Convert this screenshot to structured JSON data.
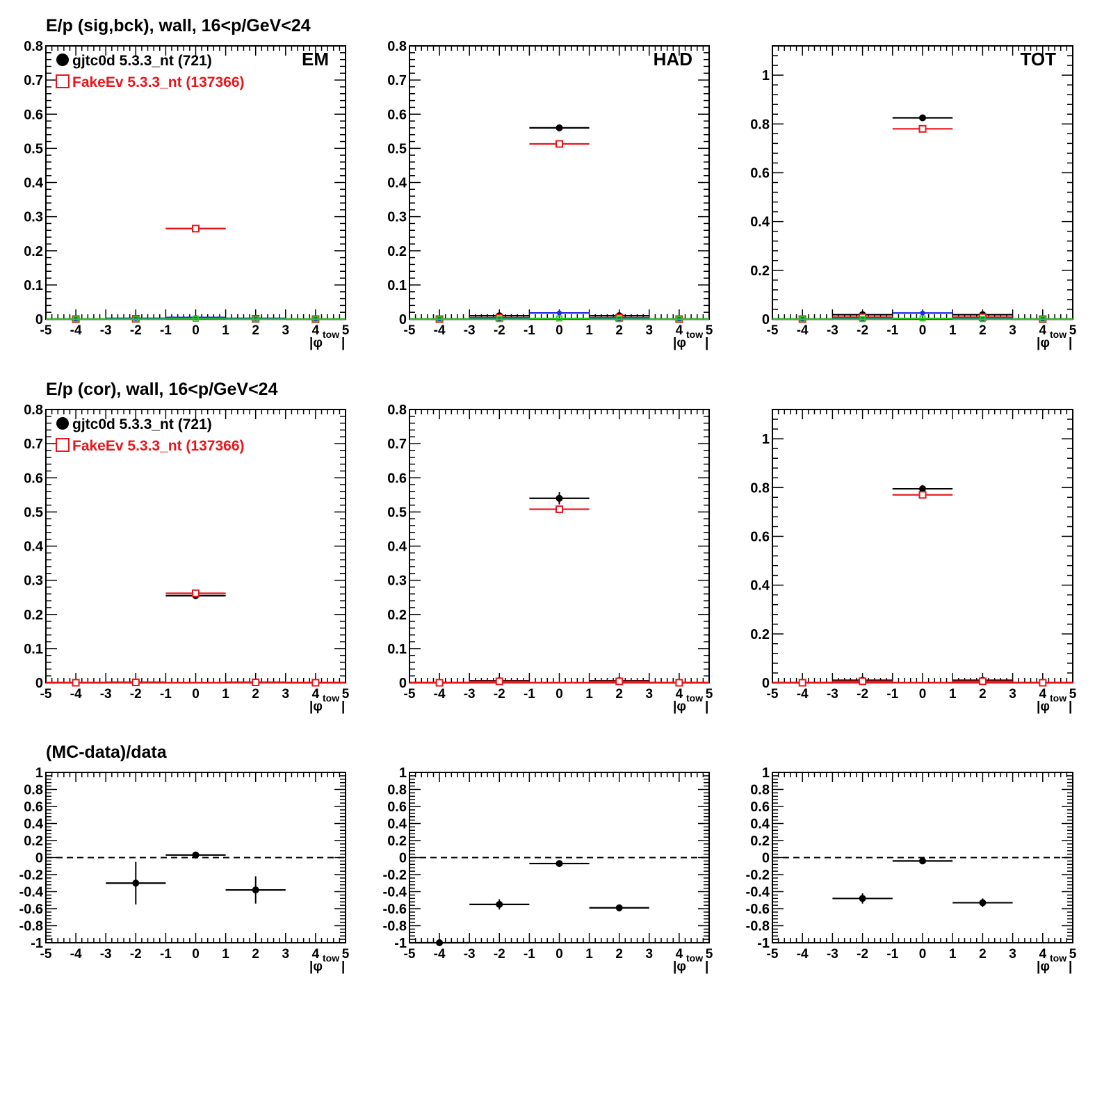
{
  "colors": {
    "data": "#000000",
    "mc": "#e8161b",
    "bck_data": "#1f2be8",
    "bck_mc": "#22cc22",
    "axis": "#000000",
    "reference": "#000000"
  },
  "rows": [
    {
      "title": "E/p (sig,bck), wall, 16<p/GeV<24"
    },
    {
      "title": "E/p (cor), wall, 16<p/GeV<24"
    },
    {
      "title": "(MC-data)/data"
    }
  ],
  "legend": {
    "items": [
      {
        "label": "gjtc0d 5.3.3_nt (721)",
        "marker": "filled-circle",
        "color": "#000000"
      },
      {
        "label": "FakeEv 5.3.3_nt (137366)",
        "marker": "open-square",
        "color": "#e8161b"
      }
    ]
  },
  "xaxis": {
    "label_main": "|φ",
    "label_sub": "tow",
    "label_close": "|",
    "tick_labels": [
      "-5",
      "-4",
      "-3",
      "-2",
      "-1",
      "0",
      "1",
      "2",
      "3",
      "4",
      "5"
    ]
  },
  "chart_data": [
    {
      "type": "scatter",
      "row": 0,
      "col": 0,
      "panel_label": "EM",
      "xlim": [
        -5,
        5
      ],
      "ylim": [
        0,
        0.8
      ],
      "yticks": [
        0,
        0.1,
        0.2,
        0.3,
        0.4,
        0.5,
        0.6,
        0.7,
        0.8
      ],
      "ytick_labels": [
        "0",
        "0.1",
        "0.2",
        "0.3",
        "0.4",
        "0.5",
        "0.6",
        "0.7",
        "0.8"
      ],
      "legend": true,
      "series": [
        {
          "name": "gjtc0d 5.3.3_nt (721)",
          "role": "data",
          "marker": "filled-circle",
          "x": [
            -4,
            -2,
            0,
            2,
            4
          ],
          "y": [
            0,
            0.002,
            0.265,
            0.002,
            0
          ],
          "yerr": [
            0,
            0.002,
            0.006,
            0.002,
            0
          ]
        },
        {
          "name": "FakeEv 5.3.3_nt (137366)",
          "role": "mc",
          "marker": "open-square",
          "x": [
            -4,
            -2,
            0,
            2,
            4
          ],
          "y": [
            0,
            0.001,
            0.265,
            0.001,
            0
          ],
          "yerr": [
            0,
            0,
            0.002,
            0,
            0
          ]
        },
        {
          "role": "bck_data",
          "marker": "small-filled-circle",
          "x": [
            -4,
            -2,
            0,
            2,
            4
          ],
          "y": [
            0,
            0.002,
            0.005,
            0.002,
            0
          ],
          "yerr": [
            0,
            0,
            0,
            0,
            0
          ]
        },
        {
          "role": "bck_mc",
          "marker": "small-open-square",
          "x": [
            -4,
            -2,
            0,
            2,
            4
          ],
          "y": [
            0,
            0,
            0.001,
            0,
            0
          ],
          "yerr": [
            0,
            0,
            0,
            0,
            0
          ]
        }
      ]
    },
    {
      "type": "scatter",
      "row": 0,
      "col": 1,
      "panel_label": "HAD",
      "xlim": [
        -5,
        5
      ],
      "ylim": [
        0,
        0.8
      ],
      "yticks": [
        0,
        0.1,
        0.2,
        0.3,
        0.4,
        0.5,
        0.6,
        0.7,
        0.8
      ],
      "ytick_labels": [
        "0",
        "0.1",
        "0.2",
        "0.3",
        "0.4",
        "0.5",
        "0.6",
        "0.7",
        "0.8"
      ],
      "legend": false,
      "series": [
        {
          "name": "gjtc0d 5.3.3_nt (721)",
          "role": "data",
          "marker": "filled-circle",
          "x": [
            -4,
            -2,
            0,
            2,
            4
          ],
          "y": [
            0,
            0.01,
            0.56,
            0.01,
            0
          ],
          "yerr": [
            0,
            0.002,
            0.01,
            0.002,
            0
          ]
        },
        {
          "name": "FakeEv 5.3.3_nt (137366)",
          "role": "mc",
          "marker": "open-square",
          "x": [
            -4,
            -2,
            0,
            2,
            4
          ],
          "y": [
            0,
            0.004,
            0.513,
            0.004,
            0
          ],
          "yerr": [
            0,
            0,
            0.002,
            0,
            0
          ]
        },
        {
          "role": "bck_data",
          "marker": "small-filled-circle",
          "x": [
            -4,
            -2,
            0,
            2,
            4
          ],
          "y": [
            0,
            0.002,
            0.018,
            0.002,
            0
          ],
          "yerr": [
            0,
            0,
            0,
            0,
            0
          ]
        },
        {
          "role": "bck_mc",
          "marker": "small-open-square",
          "x": [
            -4,
            -2,
            0,
            2,
            4
          ],
          "y": [
            0,
            0,
            0.002,
            0,
            0
          ],
          "yerr": [
            0,
            0,
            0,
            0,
            0
          ]
        }
      ]
    },
    {
      "type": "scatter",
      "row": 0,
      "col": 2,
      "panel_label": "TOT",
      "xlim": [
        -5,
        5
      ],
      "ylim": [
        0,
        1.12
      ],
      "yticks": [
        0,
        0.2,
        0.4,
        0.6,
        0.8,
        1
      ],
      "ytick_labels": [
        "0",
        "0.2",
        "0.4",
        "0.6",
        "0.8",
        "1"
      ],
      "legend": false,
      "series": [
        {
          "name": "gjtc0d 5.3.3_nt (721)",
          "role": "data",
          "marker": "filled-circle",
          "x": [
            -4,
            -2,
            0,
            2,
            4
          ],
          "y": [
            0,
            0.018,
            0.825,
            0.018,
            0
          ],
          "yerr": [
            0,
            0.003,
            0.01,
            0.003,
            0
          ]
        },
        {
          "name": "FakeEv 5.3.3_nt (137366)",
          "role": "mc",
          "marker": "open-square",
          "x": [
            -4,
            -2,
            0,
            2,
            4
          ],
          "y": [
            0,
            0.008,
            0.78,
            0.008,
            0
          ],
          "yerr": [
            0,
            0,
            0.003,
            0,
            0
          ]
        },
        {
          "role": "bck_data",
          "marker": "small-filled-circle",
          "x": [
            -4,
            -2,
            0,
            2,
            4
          ],
          "y": [
            0,
            0.003,
            0.025,
            0.003,
            0
          ],
          "yerr": [
            0,
            0,
            0,
            0,
            0
          ]
        },
        {
          "role": "bck_mc",
          "marker": "small-open-square",
          "x": [
            -4,
            -2,
            0,
            2,
            4
          ],
          "y": [
            0,
            0,
            0.003,
            0,
            0
          ],
          "yerr": [
            0,
            0,
            0,
            0,
            0
          ]
        }
      ]
    },
    {
      "type": "scatter",
      "row": 1,
      "col": 0,
      "panel_label": "",
      "xlim": [
        -5,
        5
      ],
      "ylim": [
        0,
        0.8
      ],
      "yticks": [
        0,
        0.1,
        0.2,
        0.3,
        0.4,
        0.5,
        0.6,
        0.7,
        0.8
      ],
      "ytick_labels": [
        "0",
        "0.1",
        "0.2",
        "0.3",
        "0.4",
        "0.5",
        "0.6",
        "0.7",
        "0.8"
      ],
      "legend": true,
      "series": [
        {
          "name": "gjtc0d 5.3.3_nt (721)",
          "role": "data",
          "marker": "filled-circle",
          "x": [
            -4,
            -2,
            0,
            2,
            4
          ],
          "y": [
            0,
            0.001,
            0.255,
            0.001,
            0
          ],
          "yerr": [
            0,
            0.001,
            0.008,
            0.001,
            0
          ]
        },
        {
          "name": "FakeEv 5.3.3_nt (137366)",
          "role": "mc",
          "marker": "open-square",
          "x": [
            -4,
            -2,
            0,
            2,
            4
          ],
          "y": [
            0,
            0.001,
            0.262,
            0.001,
            0
          ],
          "yerr": [
            0,
            0,
            0.002,
            0,
            0
          ]
        }
      ]
    },
    {
      "type": "scatter",
      "row": 1,
      "col": 1,
      "panel_label": "",
      "xlim": [
        -5,
        5
      ],
      "ylim": [
        0,
        0.8
      ],
      "yticks": [
        0,
        0.1,
        0.2,
        0.3,
        0.4,
        0.5,
        0.6,
        0.7,
        0.8
      ],
      "ytick_labels": [
        "0",
        "0.1",
        "0.2",
        "0.3",
        "0.4",
        "0.5",
        "0.6",
        "0.7",
        "0.8"
      ],
      "legend": false,
      "series": [
        {
          "name": "gjtc0d 5.3.3_nt (721)",
          "role": "data",
          "marker": "filled-circle",
          "x": [
            -4,
            -2,
            0,
            2,
            4
          ],
          "y": [
            0,
            0.006,
            0.54,
            0.006,
            0
          ],
          "yerr": [
            0,
            0.003,
            0.018,
            0.003,
            0
          ]
        },
        {
          "name": "FakeEv 5.3.3_nt (137366)",
          "role": "mc",
          "marker": "open-square",
          "x": [
            -4,
            -2,
            0,
            2,
            4
          ],
          "y": [
            0,
            0.004,
            0.508,
            0.004,
            0
          ],
          "yerr": [
            0,
            0,
            0.002,
            0,
            0
          ]
        }
      ]
    },
    {
      "type": "scatter",
      "row": 1,
      "col": 2,
      "panel_label": "",
      "xlim": [
        -5,
        5
      ],
      "ylim": [
        0,
        1.12
      ],
      "yticks": [
        0,
        0.2,
        0.4,
        0.6,
        0.8,
        1
      ],
      "ytick_labels": [
        "0",
        "0.2",
        "0.4",
        "0.6",
        "0.8",
        "1"
      ],
      "legend": false,
      "series": [
        {
          "name": "gjtc0d 5.3.3_nt (721)",
          "role": "data",
          "marker": "filled-circle",
          "x": [
            -4,
            -2,
            0,
            2,
            4
          ],
          "y": [
            0,
            0.01,
            0.795,
            0.01,
            0
          ],
          "yerr": [
            0,
            0.004,
            0.015,
            0.004,
            0
          ]
        },
        {
          "name": "FakeEv 5.3.3_nt (137366)",
          "role": "mc",
          "marker": "open-square",
          "x": [
            -4,
            -2,
            0,
            2,
            4
          ],
          "y": [
            0,
            0.006,
            0.77,
            0.006,
            0
          ],
          "yerr": [
            0,
            0,
            0.003,
            0,
            0
          ]
        }
      ]
    },
    {
      "type": "scatter",
      "row": 2,
      "col": 0,
      "panel_label": "",
      "xlim": [
        -5,
        5
      ],
      "ylim": [
        -1,
        1
      ],
      "reference_line": 0,
      "yticks": [
        -1,
        -0.8,
        -0.6,
        -0.4,
        -0.2,
        0,
        0.2,
        0.4,
        0.6,
        0.8,
        1
      ],
      "ytick_labels": [
        "-1",
        "-0.8",
        "-0.6",
        "-0.4",
        "-0.2",
        "0",
        "0.2",
        "0.4",
        "0.6",
        "0.8",
        "1"
      ],
      "legend": false,
      "series": [
        {
          "role": "data",
          "marker": "filled-circle",
          "x": [
            -2,
            0,
            2
          ],
          "y": [
            -0.3,
            0.03,
            -0.38
          ],
          "yerr": [
            0.25,
            0.04,
            0.16
          ]
        }
      ]
    },
    {
      "type": "scatter",
      "row": 2,
      "col": 1,
      "panel_label": "",
      "xlim": [
        -5,
        5
      ],
      "ylim": [
        -1,
        1
      ],
      "reference_line": 0,
      "yticks": [
        -1,
        -0.8,
        -0.6,
        -0.4,
        -0.2,
        0,
        0.2,
        0.4,
        0.6,
        0.8,
        1
      ],
      "ytick_labels": [
        "-1",
        "-0.8",
        "-0.6",
        "-0.4",
        "-0.2",
        "0",
        "0.2",
        "0.4",
        "0.6",
        "0.8",
        "1"
      ],
      "legend": false,
      "series": [
        {
          "role": "data",
          "marker": "filled-circle",
          "x": [
            -4,
            -2,
            0,
            2
          ],
          "y": [
            -1.0,
            -0.55,
            -0.07,
            -0.59
          ],
          "yerr": [
            0.02,
            0.06,
            0.02,
            0.04
          ]
        }
      ]
    },
    {
      "type": "scatter",
      "row": 2,
      "col": 2,
      "panel_label": "",
      "xlim": [
        -5,
        5
      ],
      "ylim": [
        -1,
        1
      ],
      "reference_line": 0,
      "yticks": [
        -1,
        -0.8,
        -0.6,
        -0.4,
        -0.2,
        0,
        0.2,
        0.4,
        0.6,
        0.8,
        1
      ],
      "ytick_labels": [
        "-1",
        "-0.8",
        "-0.6",
        "-0.4",
        "-0.2",
        "0",
        "0.2",
        "0.4",
        "0.6",
        "0.8",
        "1"
      ],
      "legend": false,
      "series": [
        {
          "role": "data",
          "marker": "filled-circle",
          "x": [
            -2,
            0,
            2
          ],
          "y": [
            -0.48,
            -0.04,
            -0.53
          ],
          "yerr": [
            0.06,
            0.02,
            0.05
          ]
        }
      ]
    }
  ]
}
